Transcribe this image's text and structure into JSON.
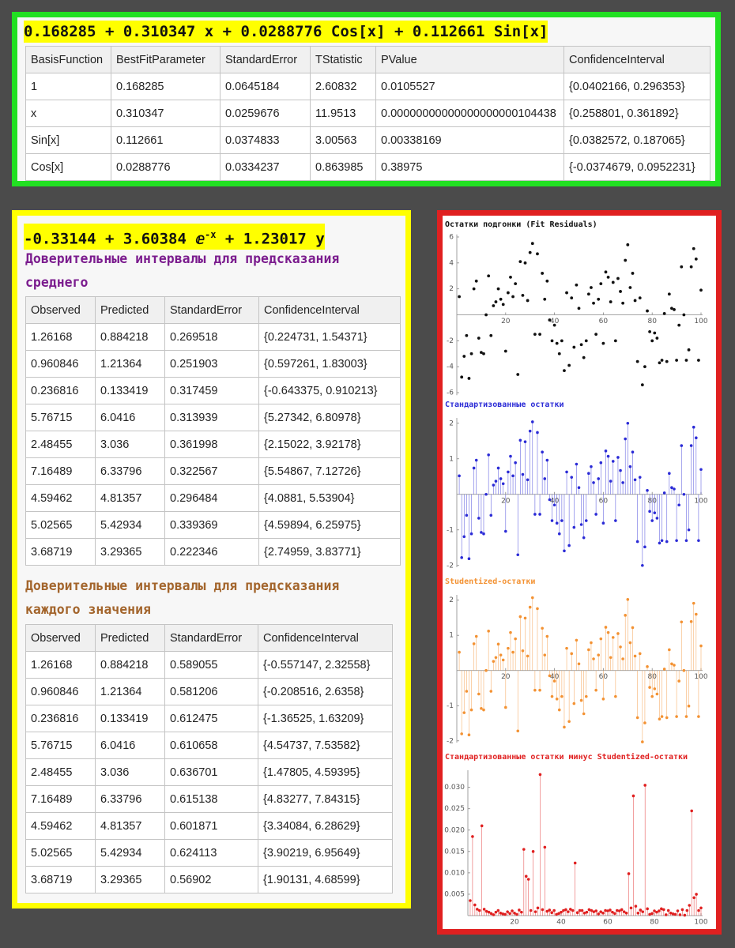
{
  "top": {
    "formula": "0.168285 + 0.310347 x + 0.0288776 Cos[x] + 0.112661 Sin[x]",
    "table": {
      "header": [
        "BasisFunction",
        "BestFitParameter",
        "StandardError",
        "TStatistic",
        "PValue",
        "ConfidenceInterval"
      ],
      "rows": [
        [
          "1",
          "0.168285",
          "0.0645184",
          "2.60832",
          "0.0105527",
          "{0.0402166, 0.296353}"
        ],
        [
          "x",
          "0.310347",
          "0.0259676",
          "11.9513",
          "0.00000000000000000000104438",
          "{0.258801, 0.361892}"
        ],
        [
          "Sin[x]",
          "0.112661",
          "0.0374833",
          "3.00563",
          "0.00338169",
          "{0.0382572, 0.187065}"
        ],
        [
          "Cos[x]",
          "0.0288776",
          "0.0334237",
          "0.863985",
          "0.38975",
          "{-0.0374679, 0.0952231}"
        ]
      ]
    }
  },
  "left": {
    "formula": {
      "base": "-0.33144 + 3.60384 ⅇ",
      "exponent": "-x",
      "rest": " + 1.23017 y"
    },
    "sections": [
      {
        "title": "Доверительные интервалы для предсказания среднего",
        "table": {
          "header": [
            "Observed",
            "Predicted",
            "StandardError",
            "ConfidenceInterval"
          ],
          "rows": [
            [
              "1.26168",
              "0.884218",
              "0.269518",
              "{0.224731, 1.54371}"
            ],
            [
              "0.960846",
              "1.21364",
              "0.251903",
              "{0.597261, 1.83003}"
            ],
            [
              "0.236816",
              "0.133419",
              "0.317459",
              "{-0.643375, 0.910213}"
            ],
            [
              "5.76715",
              "6.0416",
              "0.313939",
              "{5.27342, 6.80978}"
            ],
            [
              "2.48455",
              "3.036",
              "0.361998",
              "{2.15022, 3.92178}"
            ],
            [
              "7.16489",
              "6.33796",
              "0.322567",
              "{5.54867, 7.12726}"
            ],
            [
              "4.59462",
              "4.81357",
              "0.296484",
              "{4.0881, 5.53904}"
            ],
            [
              "5.02565",
              "5.42934",
              "0.339369",
              "{4.59894, 6.25975}"
            ],
            [
              "3.68719",
              "3.29365",
              "0.222346",
              "{2.74959, 3.83771}"
            ]
          ]
        }
      },
      {
        "title": "Доверительные интервалы для предсказания каждого значения",
        "table": {
          "header": [
            "Observed",
            "Predicted",
            "StandardError",
            "ConfidenceInterval"
          ],
          "rows": [
            [
              "1.26168",
              "0.884218",
              "0.589055",
              "{-0.557147, 2.32558}"
            ],
            [
              "0.960846",
              "1.21364",
              "0.581206",
              "{-0.208516, 2.6358}"
            ],
            [
              "0.236816",
              "0.133419",
              "0.612475",
              "{-1.36525, 1.63209}"
            ],
            [
              "5.76715",
              "6.0416",
              "0.610658",
              "{4.54737, 7.53582}"
            ],
            [
              "2.48455",
              "3.036",
              "0.636701",
              "{1.47805, 4.59395}"
            ],
            [
              "7.16489",
              "6.33796",
              "0.615138",
              "{4.83277, 7.84315}"
            ],
            [
              "4.59462",
              "4.81357",
              "0.601871",
              "{3.34084, 6.28629}"
            ],
            [
              "5.02565",
              "5.42934",
              "0.624113",
              "{3.90219, 6.95649}"
            ],
            [
              "3.68719",
              "3.29365",
              "0.56902",
              "{1.90131, 4.68599}"
            ]
          ]
        }
      }
    ]
  },
  "chart_data": [
    {
      "type": "scatter",
      "title": "Остатки подгонки (Fit Residuals)",
      "color": "#111111",
      "x": [
        1,
        2,
        3,
        4,
        5,
        6,
        7,
        8,
        9,
        10,
        11,
        12,
        13,
        14,
        15,
        16,
        17,
        18,
        19,
        20,
        21,
        22,
        23,
        24,
        25,
        26,
        27,
        28,
        29,
        30,
        31,
        32,
        33,
        34,
        35,
        36,
        37,
        38,
        39,
        40,
        41,
        42,
        43,
        44,
        45,
        46,
        47,
        48,
        49,
        50,
        51,
        52,
        53,
        54,
        55,
        56,
        57,
        58,
        59,
        60,
        61,
        62,
        63,
        64,
        65,
        66,
        67,
        68,
        69,
        70,
        71,
        72,
        73,
        74,
        75,
        76,
        77,
        78,
        79,
        80,
        81,
        82,
        83,
        84,
        85,
        86,
        87,
        88,
        89,
        90,
        91,
        92,
        93,
        94,
        95,
        96,
        97,
        98,
        99,
        100
      ],
      "values": [
        1.4,
        -4.8,
        -3.2,
        -1.6,
        -4.9,
        -3.0,
        2.0,
        2.6,
        -1.8,
        -2.9,
        -3.0,
        0.0,
        3.0,
        -1.6,
        0.7,
        1.0,
        2.0,
        1.2,
        0.8,
        -2.8,
        1.7,
        2.9,
        1.4,
        2.4,
        -4.6,
        4.1,
        1.5,
        4.0,
        1.1,
        4.8,
        5.5,
        -1.5,
        4.7,
        -1.5,
        3.2,
        1.2,
        2.6,
        -0.4,
        -2.0,
        -0.8,
        -2.2,
        -3.0,
        -2.0,
        -4.3,
        1.7,
        -3.9,
        1.3,
        -2.5,
        2.3,
        0.5,
        -2.3,
        -3.3,
        -2.0,
        1.6,
        2.1,
        0.9,
        -1.5,
        1.2,
        2.4,
        -2.2,
        3.3,
        2.9,
        1.0,
        2.5,
        -2.0,
        2.8,
        1.8,
        0.9,
        4.2,
        5.4,
        2.1,
        3.2,
        1.1,
        -3.6,
        1.3,
        -5.4,
        -4.0,
        0.3,
        -1.3,
        -2.0,
        -1.4,
        -1.8,
        -3.7,
        -3.5,
        0.1,
        -3.6,
        1.6,
        0.5,
        0.4,
        -3.5,
        -0.8,
        3.7,
        0.0,
        -3.5,
        -2.7,
        3.7,
        5.1,
        4.3,
        -3.5,
        1.9
      ],
      "xlim": [
        0,
        100
      ],
      "xticks": [
        20,
        40,
        60,
        80,
        100
      ],
      "ylim": [
        -6.2,
        6.2
      ],
      "yticks": [
        -6,
        -4,
        -2,
        2,
        4,
        6
      ]
    },
    {
      "type": "stem",
      "title": "Стандартизованные остатки",
      "color": "#2b2bd6",
      "x": [
        1,
        2,
        3,
        4,
        5,
        6,
        7,
        8,
        9,
        10,
        11,
        12,
        13,
        14,
        15,
        16,
        17,
        18,
        19,
        20,
        21,
        22,
        23,
        24,
        25,
        26,
        27,
        28,
        29,
        30,
        31,
        32,
        33,
        34,
        35,
        36,
        37,
        38,
        39,
        40,
        41,
        42,
        43,
        44,
        45,
        46,
        47,
        48,
        49,
        50,
        51,
        52,
        53,
        54,
        55,
        56,
        57,
        58,
        59,
        60,
        61,
        62,
        63,
        64,
        65,
        66,
        67,
        68,
        69,
        70,
        71,
        72,
        73,
        74,
        75,
        76,
        77,
        78,
        79,
        80,
        81,
        82,
        83,
        84,
        85,
        86,
        87,
        88,
        89,
        90,
        91,
        92,
        93,
        94,
        95,
        96,
        97,
        98,
        99,
        100
      ],
      "values": [
        0.52,
        -1.78,
        -1.19,
        -0.59,
        -1.81,
        -1.11,
        0.74,
        0.96,
        -0.67,
        -1.07,
        -1.11,
        0.0,
        1.11,
        -0.59,
        0.26,
        0.37,
        0.74,
        0.44,
        0.3,
        -1.04,
        0.63,
        1.07,
        0.52,
        0.89,
        -1.7,
        1.52,
        0.56,
        1.48,
        0.41,
        1.78,
        2.04,
        -0.56,
        1.74,
        -0.56,
        1.19,
        0.44,
        0.96,
        -0.15,
        -0.74,
        -0.3,
        -0.81,
        -1.11,
        -0.74,
        -1.59,
        0.63,
        -1.44,
        0.48,
        -0.93,
        0.85,
        0.19,
        -0.85,
        -1.22,
        -0.74,
        0.59,
        0.78,
        0.33,
        -0.56,
        0.44,
        0.89,
        -0.81,
        1.22,
        1.07,
        0.37,
        0.93,
        -0.74,
        1.04,
        0.67,
        0.33,
        1.56,
        2.0,
        0.78,
        1.19,
        0.41,
        -1.33,
        0.48,
        -2.0,
        -1.48,
        0.11,
        -0.48,
        -0.74,
        -0.52,
        -0.67,
        -1.37,
        -1.3,
        0.04,
        -1.33,
        0.59,
        0.19,
        0.15,
        -1.3,
        -0.3,
        1.37,
        0.0,
        -1.3,
        -1.0,
        1.37,
        1.89,
        1.59,
        -1.3,
        0.7
      ],
      "xlim": [
        0,
        100
      ],
      "xticks": [
        20,
        40,
        60,
        80,
        100
      ],
      "ylim": [
        -2.05,
        2.15
      ],
      "yticks": [
        -2,
        -1,
        1,
        2
      ]
    },
    {
      "type": "stem",
      "title": "Studentized-остатки",
      "color": "#f39233",
      "x": [
        1,
        2,
        3,
        4,
        5,
        6,
        7,
        8,
        9,
        10,
        11,
        12,
        13,
        14,
        15,
        16,
        17,
        18,
        19,
        20,
        21,
        22,
        23,
        24,
        25,
        26,
        27,
        28,
        29,
        30,
        31,
        32,
        33,
        34,
        35,
        36,
        37,
        38,
        39,
        40,
        41,
        42,
        43,
        44,
        45,
        46,
        47,
        48,
        49,
        50,
        51,
        52,
        53,
        54,
        55,
        56,
        57,
        58,
        59,
        60,
        61,
        62,
        63,
        64,
        65,
        66,
        67,
        68,
        69,
        70,
        71,
        72,
        73,
        74,
        75,
        76,
        77,
        78,
        79,
        80,
        81,
        82,
        83,
        84,
        85,
        86,
        87,
        88,
        89,
        90,
        91,
        92,
        93,
        94,
        95,
        96,
        97,
        98,
        99,
        100
      ],
      "values": [
        0.52,
        -1.8,
        -1.2,
        -0.59,
        -1.83,
        -1.12,
        0.76,
        0.97,
        -0.67,
        -1.08,
        -1.12,
        0.0,
        1.12,
        -0.59,
        0.26,
        0.37,
        0.75,
        0.44,
        0.3,
        -1.05,
        0.63,
        1.08,
        0.52,
        0.9,
        -1.72,
        1.53,
        0.56,
        1.49,
        0.41,
        1.8,
        2.07,
        -0.56,
        1.76,
        -0.56,
        1.2,
        0.44,
        0.97,
        -0.15,
        -0.74,
        -0.3,
        -0.81,
        -1.12,
        -0.74,
        -1.61,
        0.63,
        -1.45,
        0.48,
        -0.94,
        0.86,
        0.19,
        -0.85,
        -1.23,
        -0.74,
        0.59,
        0.79,
        0.33,
        -0.56,
        0.44,
        0.9,
        -0.81,
        1.23,
        1.08,
        0.37,
        0.94,
        -0.74,
        1.05,
        0.67,
        0.33,
        1.57,
        2.02,
        0.79,
        1.22,
        0.41,
        -1.34,
        0.48,
        -2.03,
        -1.49,
        0.11,
        -0.48,
        -0.74,
        -0.52,
        -0.67,
        -1.38,
        -1.31,
        0.04,
        -1.34,
        0.59,
        0.19,
        0.15,
        -1.31,
        -0.3,
        1.38,
        0.0,
        -1.31,
        -1.01,
        1.39,
        1.91,
        1.6,
        -1.31,
        0.7
      ],
      "xlim": [
        0,
        100
      ],
      "xticks": [
        20,
        40,
        60,
        80,
        100
      ],
      "ylim": [
        -2.05,
        2.15
      ],
      "yticks": [
        -2,
        -1,
        1,
        2
      ]
    },
    {
      "type": "stem",
      "title": "Стандартизованные остатки минус Studentized-остатки",
      "color": "#e02020",
      "x": [
        1,
        2,
        3,
        4,
        5,
        6,
        7,
        8,
        9,
        10,
        11,
        12,
        13,
        14,
        15,
        16,
        17,
        18,
        19,
        20,
        21,
        22,
        23,
        24,
        25,
        26,
        27,
        28,
        29,
        30,
        31,
        32,
        33,
        34,
        35,
        36,
        37,
        38,
        39,
        40,
        41,
        42,
        43,
        44,
        45,
        46,
        47,
        48,
        49,
        50,
        51,
        52,
        53,
        54,
        55,
        56,
        57,
        58,
        59,
        60,
        61,
        62,
        63,
        64,
        65,
        66,
        67,
        68,
        69,
        70,
        71,
        72,
        73,
        74,
        75,
        76,
        77,
        78,
        79,
        80,
        81,
        82,
        83,
        84,
        85,
        86,
        87,
        88,
        89,
        90,
        91,
        92,
        93,
        94,
        95,
        96,
        97,
        98,
        99,
        100
      ],
      "values": [
        0.0035,
        0.0185,
        0.0025,
        0.0015,
        0.0012,
        0.021,
        0.0015,
        0.001,
        0.0008,
        0.0005,
        0.0002,
        0.0008,
        0.0012,
        0.0006,
        0.0004,
        0.0003,
        0.0009,
        0.0005,
        0.0011,
        0.0006,
        0.0003,
        0.0013,
        0.0008,
        0.0155,
        0.0092,
        0.0085,
        0.0012,
        0.015,
        0.0009,
        0.0018,
        0.033,
        0.0014,
        0.016,
        0.001,
        0.0013,
        0.0007,
        0.0012,
        0.0003,
        0.0005,
        0.0008,
        0.0012,
        0.0014,
        0.0009,
        0.0015,
        0.0012,
        0.0123,
        0.0007,
        0.0012,
        0.0012,
        0.0006,
        0.0008,
        0.0014,
        0.0012,
        0.0009,
        0.0011,
        0.0004,
        0.0009,
        0.0006,
        0.0012,
        0.0011,
        0.0013,
        0.0008,
        0.0005,
        0.0012,
        0.0011,
        0.0014,
        0.0009,
        0.0006,
        0.0098,
        0.0018,
        0.028,
        0.0022,
        0.0006,
        0.0013,
        0.0009,
        0.0305,
        0.0016,
        0.0003,
        0.0005,
        0.0011,
        0.0008,
        0.0011,
        0.0016,
        0.0014,
        0.0002,
        0.0012,
        0.0006,
        0.0004,
        0.0003,
        0.0011,
        0.0002,
        0.0014,
        0.0001,
        0.0012,
        0.0024,
        0.0245,
        0.0042,
        0.005,
        0.0012,
        0.0018
      ],
      "xlim": [
        0,
        100
      ],
      "xticks": [
        20,
        40,
        60,
        80,
        100
      ],
      "ylim": [
        0,
        0.034
      ],
      "yticks": [
        0.005,
        {
          "value": 0.01,
          "label": "0.010"
        },
        0.015,
        {
          "value": 0.02,
          "label": "0.020"
        },
        0.025,
        {
          "value": 0.03,
          "label": "0.030"
        }
      ]
    }
  ]
}
